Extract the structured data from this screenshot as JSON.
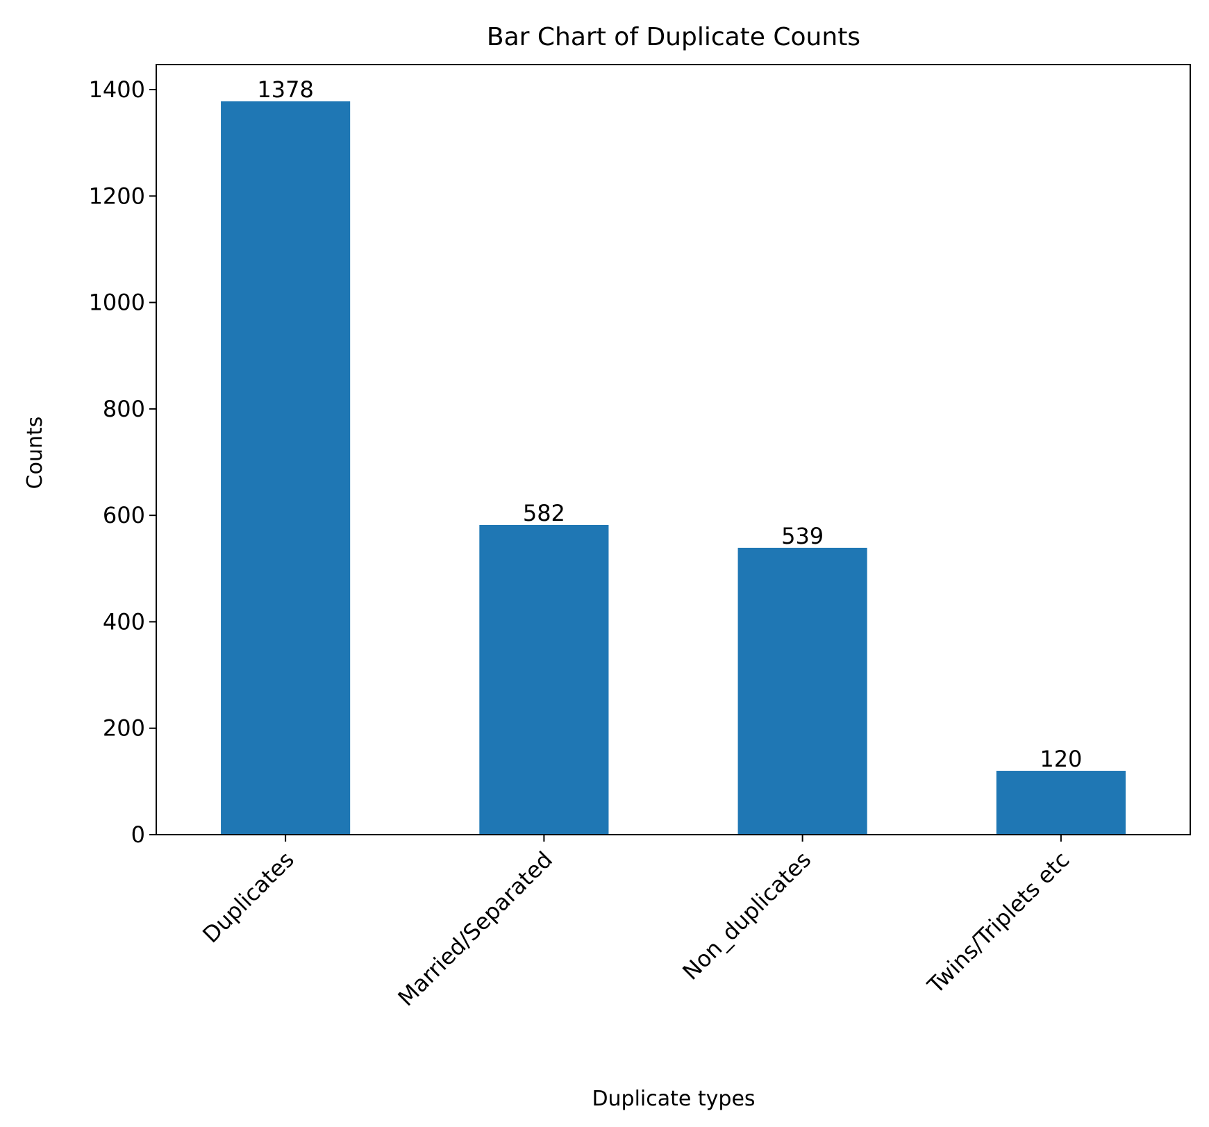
{
  "chart_data": {
    "type": "bar",
    "title": "Bar Chart of Duplicate Counts",
    "xlabel": "Duplicate types",
    "ylabel": "Counts",
    "categories": [
      "Duplicates",
      "Married/Separated",
      "Non_duplicates",
      "Twins/Triplets etc"
    ],
    "values": [
      1378,
      582,
      539,
      120
    ],
    "data_labels": [
      "1378",
      "582",
      "539",
      "120"
    ],
    "ylim": [
      0,
      1447
    ],
    "yticks": [
      0,
      200,
      400,
      600,
      800,
      1000,
      1200,
      1400
    ],
    "ytick_labels": [
      "0",
      "200",
      "400",
      "600",
      "800",
      "1000",
      "1200",
      "1400"
    ],
    "bar_color": "#1f77b4",
    "grid": false,
    "legend": "none",
    "xtick_rotation_deg": 45
  }
}
